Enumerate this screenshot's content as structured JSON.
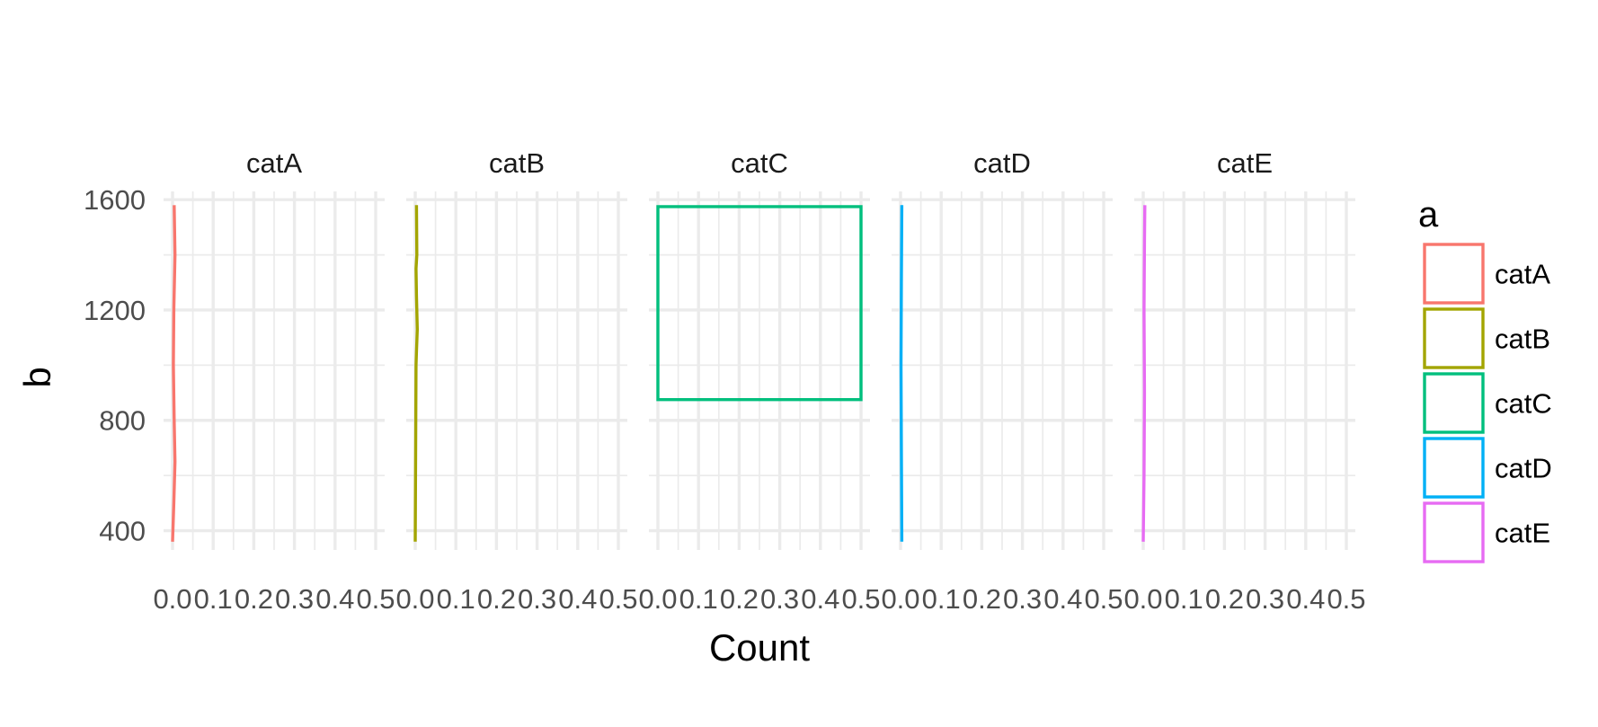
{
  "chart_data": {
    "type": "area",
    "orientation": "horizontal",
    "xlabel": "Count",
    "ylabel": "b",
    "xlim": [
      0,
      0.5
    ],
    "ylim": [
      330,
      1630
    ],
    "x_ticks": [
      0.0,
      0.1,
      0.2,
      0.3,
      0.4,
      0.5
    ],
    "x_tick_labels": [
      "0.0",
      "0.1",
      "0.2",
      "0.3",
      "0.4",
      "0.5"
    ],
    "y_ticks": [
      400,
      800,
      1200,
      1600
    ],
    "y_tick_labels": [
      "400",
      "800",
      "1200",
      "1600"
    ],
    "grid": true,
    "legend": {
      "title": "a",
      "position": "right",
      "entries": [
        "catA",
        "catB",
        "catC",
        "catD",
        "catE"
      ]
    },
    "panels": [
      {
        "name": "catA",
        "color": "#F8766D",
        "points": [
          [
            360,
            0.0
          ],
          [
            500,
            0.003
          ],
          [
            650,
            0.006
          ],
          [
            800,
            0.004
          ],
          [
            1000,
            0.002
          ],
          [
            1200,
            0.003
          ],
          [
            1400,
            0.006
          ],
          [
            1580,
            0.004
          ]
        ]
      },
      {
        "name": "catB",
        "color": "#A3A500",
        "points": [
          [
            360,
            0.0
          ],
          [
            700,
            0.001
          ],
          [
            1000,
            0.002
          ],
          [
            1050,
            0.003
          ],
          [
            1130,
            0.005
          ],
          [
            1250,
            0.003
          ],
          [
            1350,
            0.002
          ],
          [
            1400,
            0.004
          ],
          [
            1580,
            0.003
          ]
        ]
      },
      {
        "name": "catC",
        "color": "#00BF7D",
        "points": [
          [
            875,
            0.0
          ],
          [
            875,
            0.5
          ],
          [
            1575,
            0.5
          ],
          [
            1575,
            0.0
          ]
        ]
      },
      {
        "name": "catD",
        "color": "#00B0F6",
        "points": [
          [
            360,
            0.003
          ],
          [
            700,
            0.002
          ],
          [
            1000,
            0.001
          ],
          [
            1300,
            0.002
          ],
          [
            1580,
            0.003
          ]
        ]
      },
      {
        "name": "catE",
        "color": "#E76BF3",
        "points": [
          [
            360,
            0.0
          ],
          [
            600,
            0.002
          ],
          [
            900,
            0.003
          ],
          [
            1200,
            0.002
          ],
          [
            1450,
            0.003
          ],
          [
            1580,
            0.004
          ]
        ]
      }
    ]
  }
}
